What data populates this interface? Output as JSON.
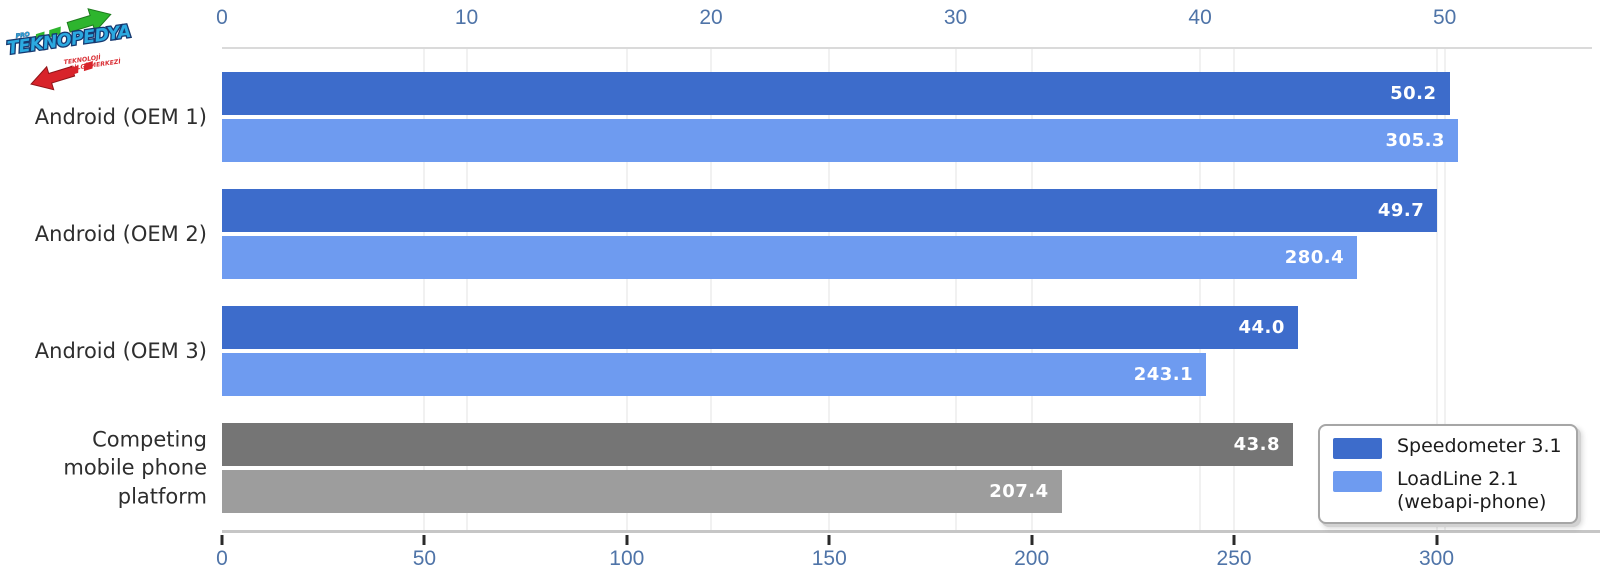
{
  "logo": {
    "text": "TEKNOPEDYA",
    "prefix": "PRO",
    "tagline_line1": "TEKNOLOJİ",
    "tagline_line2": "BİLGİ MERKEZİ",
    "colors": {
      "text_fill": "#2ba9e0",
      "text_outline": "#16386f",
      "green_arrow": "#2eb52e",
      "red_arrow": "#d8232a"
    }
  },
  "chart_data": {
    "type": "bar",
    "orientation": "horizontal",
    "categories": [
      "Android (OEM 1)",
      "Android (OEM 2)",
      "Android (OEM 3)",
      "Competing mobile phone platform"
    ],
    "series": [
      {
        "name": "Speedometer 3.1",
        "axis": "top",
        "values": [
          50.2,
          49.7,
          44.0,
          43.8
        ]
      },
      {
        "name": "LoadLine 2.1 (webapi-phone)",
        "axis": "bottom",
        "values": [
          305.3,
          280.4,
          243.1,
          207.4
        ]
      }
    ],
    "value_labels": [
      [
        "50.2",
        "49.7",
        "44.0",
        "43.8"
      ],
      [
        "305.3",
        "280.4",
        "243.1",
        "207.4"
      ]
    ],
    "top_axis": {
      "ticks": [
        0,
        10,
        20,
        30,
        40,
        50
      ],
      "max": 54.8
    },
    "bottom_axis": {
      "ticks": [
        0,
        50,
        100,
        150,
        200,
        250,
        300
      ],
      "max": 331
    },
    "muted_category_index": 3,
    "colors": {
      "series1": "#3d6ccb",
      "series1_muted": "#757575",
      "series2": "#6e9bf0",
      "series2_muted": "#9d9d9d",
      "tick_label": "#4f74a8",
      "grid": "#f1f1f1"
    },
    "grid": true,
    "legend": {
      "position": "bottom-right",
      "entries": [
        {
          "lines": [
            "Speedometer 3.1"
          ],
          "color": "#3d6ccb"
        },
        {
          "lines": [
            "LoadLine 2.1",
            "(webapi-phone)"
          ],
          "color": "#6e9bf0"
        }
      ]
    }
  }
}
